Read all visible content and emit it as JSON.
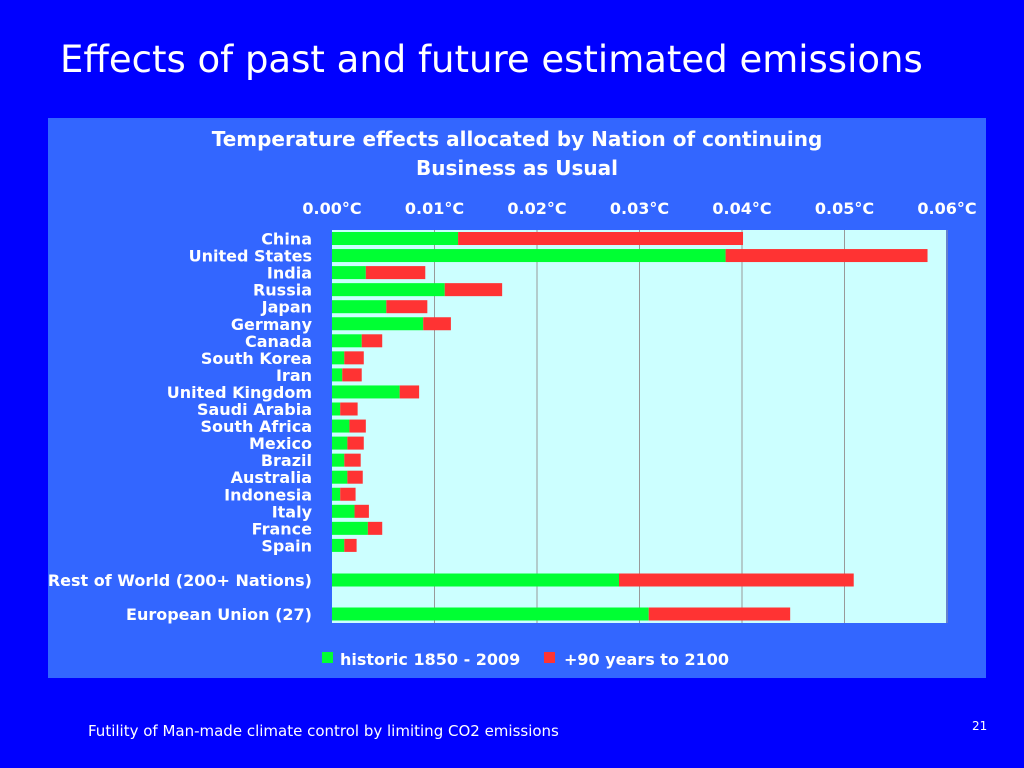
{
  "slide": {
    "title": "Effects of past and future estimated emissions",
    "footer": "Futility of Man-made climate control by limiting CO2 emissions",
    "page_number": "21"
  },
  "colors": {
    "slide_background": "#0000ff",
    "panel_background": "#3366ff",
    "plot_background": "#ccffff",
    "historic": "#00ff33",
    "future": "#ff3333",
    "text": "#ffffff",
    "gridline": "#999999"
  },
  "chart_data": {
    "type": "bar",
    "orientation": "horizontal",
    "stacked": true,
    "title": "Temperature effects allocated by Nation of continuing Business as Usual",
    "title_lines": [
      "Temperature effects allocated by Nation of continuing",
      "Business as Usual"
    ],
    "xlabel": "",
    "ylabel": "",
    "xlim": [
      0,
      0.06
    ],
    "x_ticks": [
      0,
      0.01,
      0.02,
      0.03,
      0.04,
      0.05,
      0.06
    ],
    "x_tick_labels": [
      "0.00°C",
      "0.01°C",
      "0.02°C",
      "0.03°C",
      "0.04°C",
      "0.05°C",
      "0.06°C"
    ],
    "x_axis_position": "top",
    "grid": "vertical",
    "legend_position": "bottom",
    "categories": [
      "China",
      "United States",
      "India",
      "Russia",
      "Japan",
      "Germany",
      "Canada",
      "South Korea",
      "Iran",
      "United Kingdom",
      "Saudi Arabia",
      "South Africa",
      "Mexico",
      "Brazil",
      "Australia",
      "Indonesia",
      "Italy",
      "France",
      "Spain",
      "Rest of World  (200+ Nations)",
      "European Union (27)"
    ],
    "series": [
      {
        "name": "historic  1850 - 2009",
        "color": "#00ff33",
        "values": [
          0.0123,
          0.0384,
          0.0033,
          0.011,
          0.0053,
          0.0089,
          0.0029,
          0.0012,
          0.001,
          0.0066,
          0.0008,
          0.0017,
          0.0015,
          0.0012,
          0.0015,
          0.0008,
          0.0022,
          0.0035,
          0.0012,
          0.028,
          0.0309
        ]
      },
      {
        "name": "+90 years to 2100",
        "color": "#ff3333",
        "values": [
          0.0278,
          0.0197,
          0.0058,
          0.0056,
          0.004,
          0.0027,
          0.002,
          0.0019,
          0.0019,
          0.0019,
          0.0017,
          0.0016,
          0.0016,
          0.0016,
          0.0015,
          0.0015,
          0.0014,
          0.0014,
          0.0012,
          0.0229,
          0.0138
        ]
      }
    ]
  }
}
